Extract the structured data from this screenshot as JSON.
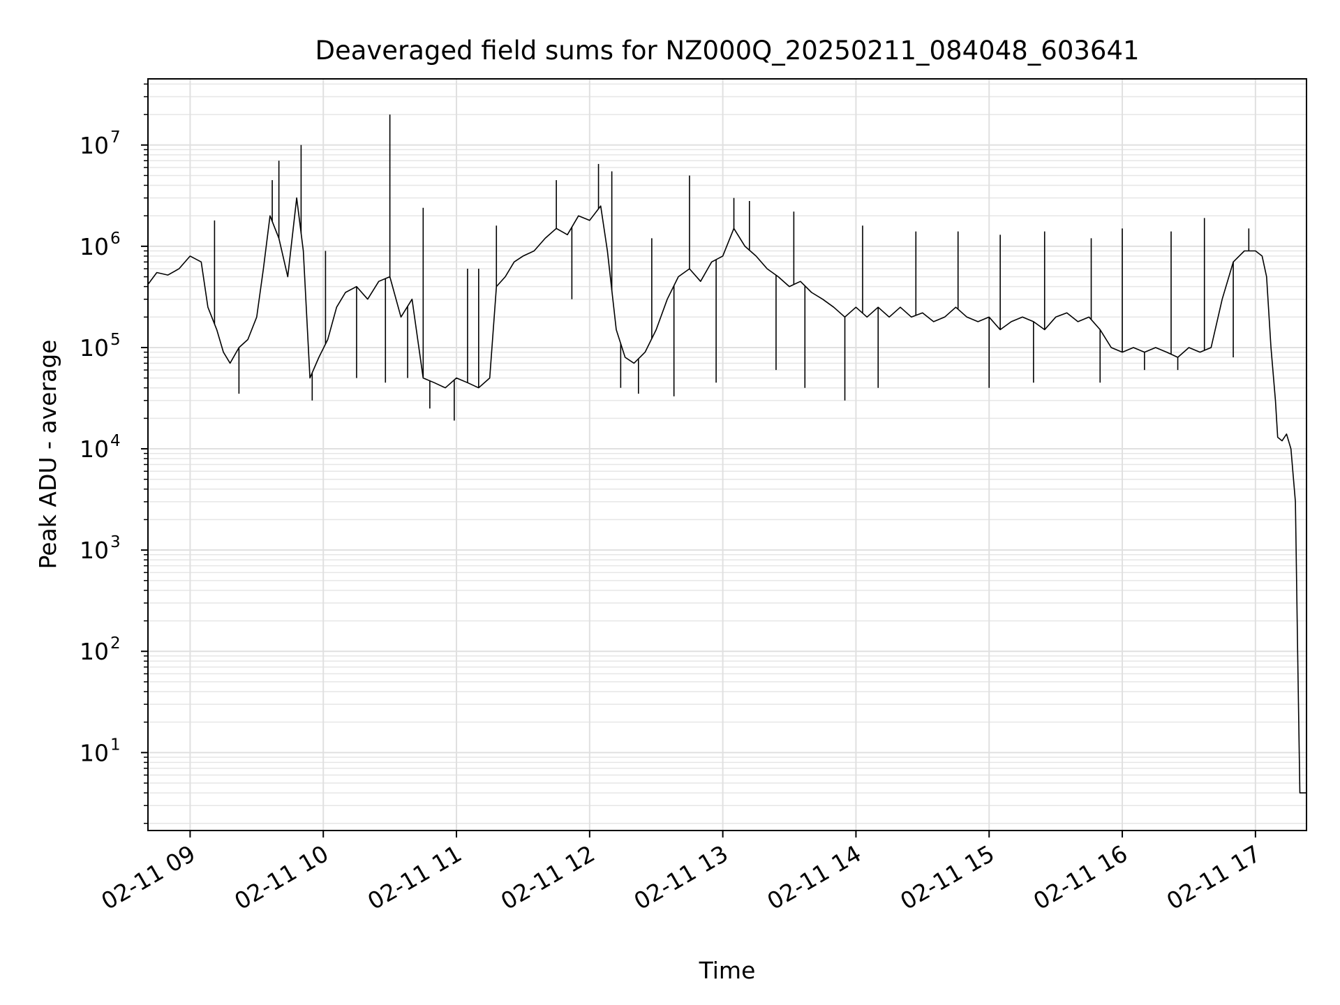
{
  "chart_data": {
    "type": "line",
    "title": "Deaveraged field sums for NZ000Q_20250211_084048_603641",
    "xlabel": "Time",
    "ylabel": "Peak ADU - average",
    "yscale": "log",
    "grid": true,
    "grid_minor": true,
    "xlim": [
      "2025-02-11 08:41",
      "2025-02-11 17:23"
    ],
    "ylim": [
      1.7,
      45000000
    ],
    "x_ticks": [
      {
        "t": "2025-02-11 09:00",
        "label": "02-11 09"
      },
      {
        "t": "2025-02-11 10:00",
        "label": "02-11 10"
      },
      {
        "t": "2025-02-11 11:00",
        "label": "02-11 11"
      },
      {
        "t": "2025-02-11 12:00",
        "label": "02-11 12"
      },
      {
        "t": "2025-02-11 13:00",
        "label": "02-11 13"
      },
      {
        "t": "2025-02-11 14:00",
        "label": "02-11 14"
      },
      {
        "t": "2025-02-11 15:00",
        "label": "02-11 15"
      },
      {
        "t": "2025-02-11 16:00",
        "label": "02-11 16"
      },
      {
        "t": "2025-02-11 17:00",
        "label": "02-11 17"
      }
    ],
    "y_ticks": [
      {
        "value": 10,
        "label": "10",
        "exp": "1"
      },
      {
        "value": 100,
        "label": "10",
        "exp": "2"
      },
      {
        "value": 1000,
        "label": "10",
        "exp": "3"
      },
      {
        "value": 10000,
        "label": "10",
        "exp": "4"
      },
      {
        "value": 100000,
        "label": "10",
        "exp": "5"
      },
      {
        "value": 1000000,
        "label": "10",
        "exp": "6"
      },
      {
        "value": 10000000,
        "label": "10",
        "exp": "7"
      }
    ],
    "series": [
      {
        "color": "#000000",
        "points": [
          [
            "2025-02-11 08:41",
            420000
          ],
          [
            "2025-02-11 08:45",
            550000
          ],
          [
            "2025-02-11 08:50",
            520000
          ],
          [
            "2025-02-11 08:55",
            600000
          ],
          [
            "2025-02-11 09:00",
            800000
          ],
          [
            "2025-02-11 09:05",
            700000
          ],
          [
            "2025-02-11 09:08",
            250000
          ],
          [
            "2025-02-11 09:12",
            150000
          ],
          [
            "2025-02-11 09:15",
            90000
          ],
          [
            "2025-02-11 09:18",
            70000
          ],
          [
            "2025-02-11 09:22",
            100000
          ],
          [
            "2025-02-11 09:26",
            120000
          ],
          [
            "2025-02-11 09:30",
            200000
          ],
          [
            "2025-02-11 09:33",
            600000
          ],
          [
            "2025-02-11 09:36",
            2000000
          ],
          [
            "2025-02-11 09:40",
            1200000
          ],
          [
            "2025-02-11 09:44",
            500000
          ],
          [
            "2025-02-11 09:48",
            3000000
          ],
          [
            "2025-02-11 09:51",
            900000
          ],
          [
            "2025-02-11 09:54",
            50000
          ],
          [
            "2025-02-11 09:58",
            80000
          ],
          [
            "2025-02-11 10:02",
            120000
          ],
          [
            "2025-02-11 10:06",
            250000
          ],
          [
            "2025-02-11 10:10",
            350000
          ],
          [
            "2025-02-11 10:15",
            400000
          ],
          [
            "2025-02-11 10:20",
            300000
          ],
          [
            "2025-02-11 10:25",
            450000
          ],
          [
            "2025-02-11 10:30",
            500000
          ],
          [
            "2025-02-11 10:35",
            200000
          ],
          [
            "2025-02-11 10:40",
            300000
          ],
          [
            "2025-02-11 10:45",
            50000
          ],
          [
            "2025-02-11 10:50",
            45000
          ],
          [
            "2025-02-11 10:55",
            40000
          ],
          [
            "2025-02-11 11:00",
            50000
          ],
          [
            "2025-02-11 11:05",
            45000
          ],
          [
            "2025-02-11 11:10",
            40000
          ],
          [
            "2025-02-11 11:15",
            50000
          ],
          [
            "2025-02-11 11:18",
            400000
          ],
          [
            "2025-02-11 11:22",
            500000
          ],
          [
            "2025-02-11 11:26",
            700000
          ],
          [
            "2025-02-11 11:30",
            800000
          ],
          [
            "2025-02-11 11:35",
            900000
          ],
          [
            "2025-02-11 11:40",
            1200000
          ],
          [
            "2025-02-11 11:45",
            1500000
          ],
          [
            "2025-02-11 11:50",
            1300000
          ],
          [
            "2025-02-11 11:55",
            2000000
          ],
          [
            "2025-02-11 12:00",
            1800000
          ],
          [
            "2025-02-11 12:05",
            2500000
          ],
          [
            "2025-02-11 12:08",
            900000
          ],
          [
            "2025-02-11 12:12",
            150000
          ],
          [
            "2025-02-11 12:16",
            80000
          ],
          [
            "2025-02-11 12:20",
            70000
          ],
          [
            "2025-02-11 12:25",
            90000
          ],
          [
            "2025-02-11 12:30",
            150000
          ],
          [
            "2025-02-11 12:35",
            300000
          ],
          [
            "2025-02-11 12:40",
            500000
          ],
          [
            "2025-02-11 12:45",
            600000
          ],
          [
            "2025-02-11 12:50",
            450000
          ],
          [
            "2025-02-11 12:55",
            700000
          ],
          [
            "2025-02-11 13:00",
            800000
          ],
          [
            "2025-02-11 13:05",
            1500000
          ],
          [
            "2025-02-11 13:10",
            1000000
          ],
          [
            "2025-02-11 13:15",
            800000
          ],
          [
            "2025-02-11 13:20",
            600000
          ],
          [
            "2025-02-11 13:25",
            500000
          ],
          [
            "2025-02-11 13:30",
            400000
          ],
          [
            "2025-02-11 13:35",
            450000
          ],
          [
            "2025-02-11 13:40",
            350000
          ],
          [
            "2025-02-11 13:45",
            300000
          ],
          [
            "2025-02-11 13:50",
            250000
          ],
          [
            "2025-02-11 13:55",
            200000
          ],
          [
            "2025-02-11 14:00",
            250000
          ],
          [
            "2025-02-11 14:05",
            200000
          ],
          [
            "2025-02-11 14:10",
            250000
          ],
          [
            "2025-02-11 14:15",
            200000
          ],
          [
            "2025-02-11 14:20",
            250000
          ],
          [
            "2025-02-11 14:25",
            200000
          ],
          [
            "2025-02-11 14:30",
            220000
          ],
          [
            "2025-02-11 14:35",
            180000
          ],
          [
            "2025-02-11 14:40",
            200000
          ],
          [
            "2025-02-11 14:45",
            250000
          ],
          [
            "2025-02-11 14:50",
            200000
          ],
          [
            "2025-02-11 14:55",
            180000
          ],
          [
            "2025-02-11 15:00",
            200000
          ],
          [
            "2025-02-11 15:05",
            150000
          ],
          [
            "2025-02-11 15:10",
            180000
          ],
          [
            "2025-02-11 15:15",
            200000
          ],
          [
            "2025-02-11 15:20",
            180000
          ],
          [
            "2025-02-11 15:25",
            150000
          ],
          [
            "2025-02-11 15:30",
            200000
          ],
          [
            "2025-02-11 15:35",
            220000
          ],
          [
            "2025-02-11 15:40",
            180000
          ],
          [
            "2025-02-11 15:45",
            200000
          ],
          [
            "2025-02-11 15:50",
            150000
          ],
          [
            "2025-02-11 15:55",
            100000
          ],
          [
            "2025-02-11 16:00",
            90000
          ],
          [
            "2025-02-11 16:05",
            100000
          ],
          [
            "2025-02-11 16:10",
            90000
          ],
          [
            "2025-02-11 16:15",
            100000
          ],
          [
            "2025-02-11 16:20",
            90000
          ],
          [
            "2025-02-11 16:25",
            80000
          ],
          [
            "2025-02-11 16:30",
            100000
          ],
          [
            "2025-02-11 16:35",
            90000
          ],
          [
            "2025-02-11 16:40",
            100000
          ],
          [
            "2025-02-11 16:45",
            300000
          ],
          [
            "2025-02-11 16:50",
            700000
          ],
          [
            "2025-02-11 16:55",
            900000
          ],
          [
            "2025-02-11 17:00",
            900000
          ],
          [
            "2025-02-11 17:03",
            800000
          ],
          [
            "2025-02-11 17:05",
            500000
          ],
          [
            "2025-02-11 17:07",
            100000
          ],
          [
            "2025-02-11 17:09",
            30000
          ],
          [
            "2025-02-11 17:10",
            13000
          ],
          [
            "2025-02-11 17:12",
            12000
          ],
          [
            "2025-02-11 17:14",
            14000
          ],
          [
            "2025-02-11 17:16",
            10000
          ],
          [
            "2025-02-11 17:18",
            3000
          ],
          [
            "2025-02-11 17:19",
            100
          ],
          [
            "2025-02-11 17:20",
            4
          ],
          [
            "2025-02-11 17:23",
            4
          ]
        ],
        "spikes": [
          [
            "2025-02-11 09:11",
            1800000
          ],
          [
            "2025-02-11 09:22",
            35000
          ],
          [
            "2025-02-11 09:37",
            4500000
          ],
          [
            "2025-02-11 09:40",
            7000000
          ],
          [
            "2025-02-11 09:50",
            10000000
          ],
          [
            "2025-02-11 09:55",
            30000
          ],
          [
            "2025-02-11 10:01",
            900000
          ],
          [
            "2025-02-11 10:15",
            50000
          ],
          [
            "2025-02-11 10:28",
            45000
          ],
          [
            "2025-02-11 10:30",
            20000000
          ],
          [
            "2025-02-11 10:38",
            50000
          ],
          [
            "2025-02-11 10:45",
            2400000
          ],
          [
            "2025-02-11 10:48",
            25000
          ],
          [
            "2025-02-11 10:59",
            19000
          ],
          [
            "2025-02-11 11:05",
            600000
          ],
          [
            "2025-02-11 11:10",
            600000
          ],
          [
            "2025-02-11 11:18",
            1600000
          ],
          [
            "2025-02-11 11:45",
            4500000
          ],
          [
            "2025-02-11 11:52",
            300000
          ],
          [
            "2025-02-11 12:04",
            6500000
          ],
          [
            "2025-02-11 12:10",
            5500000
          ],
          [
            "2025-02-11 12:14",
            40000
          ],
          [
            "2025-02-11 12:22",
            35000
          ],
          [
            "2025-02-11 12:28",
            1200000
          ],
          [
            "2025-02-11 12:38",
            33000
          ],
          [
            "2025-02-11 12:45",
            5000000
          ],
          [
            "2025-02-11 12:57",
            45000
          ],
          [
            "2025-02-11 13:05",
            3000000
          ],
          [
            "2025-02-11 13:12",
            2800000
          ],
          [
            "2025-02-11 13:24",
            60000
          ],
          [
            "2025-02-11 13:32",
            2200000
          ],
          [
            "2025-02-11 13:37",
            40000
          ],
          [
            "2025-02-11 13:55",
            30000
          ],
          [
            "2025-02-11 14:03",
            1600000
          ],
          [
            "2025-02-11 14:10",
            40000
          ],
          [
            "2025-02-11 14:27",
            1400000
          ],
          [
            "2025-02-11 14:46",
            1400000
          ],
          [
            "2025-02-11 15:00",
            40000
          ],
          [
            "2025-02-11 15:05",
            1300000
          ],
          [
            "2025-02-11 15:20",
            45000
          ],
          [
            "2025-02-11 15:25",
            1400000
          ],
          [
            "2025-02-11 15:46",
            1200000
          ],
          [
            "2025-02-11 15:50",
            45000
          ],
          [
            "2025-02-11 16:00",
            1500000
          ],
          [
            "2025-02-11 16:10",
            60000
          ],
          [
            "2025-02-11 16:22",
            1400000
          ],
          [
            "2025-02-11 16:25",
            60000
          ],
          [
            "2025-02-11 16:37",
            1900000
          ],
          [
            "2025-02-11 16:50",
            80000
          ],
          [
            "2025-02-11 16:57",
            1500000
          ]
        ]
      }
    ]
  }
}
